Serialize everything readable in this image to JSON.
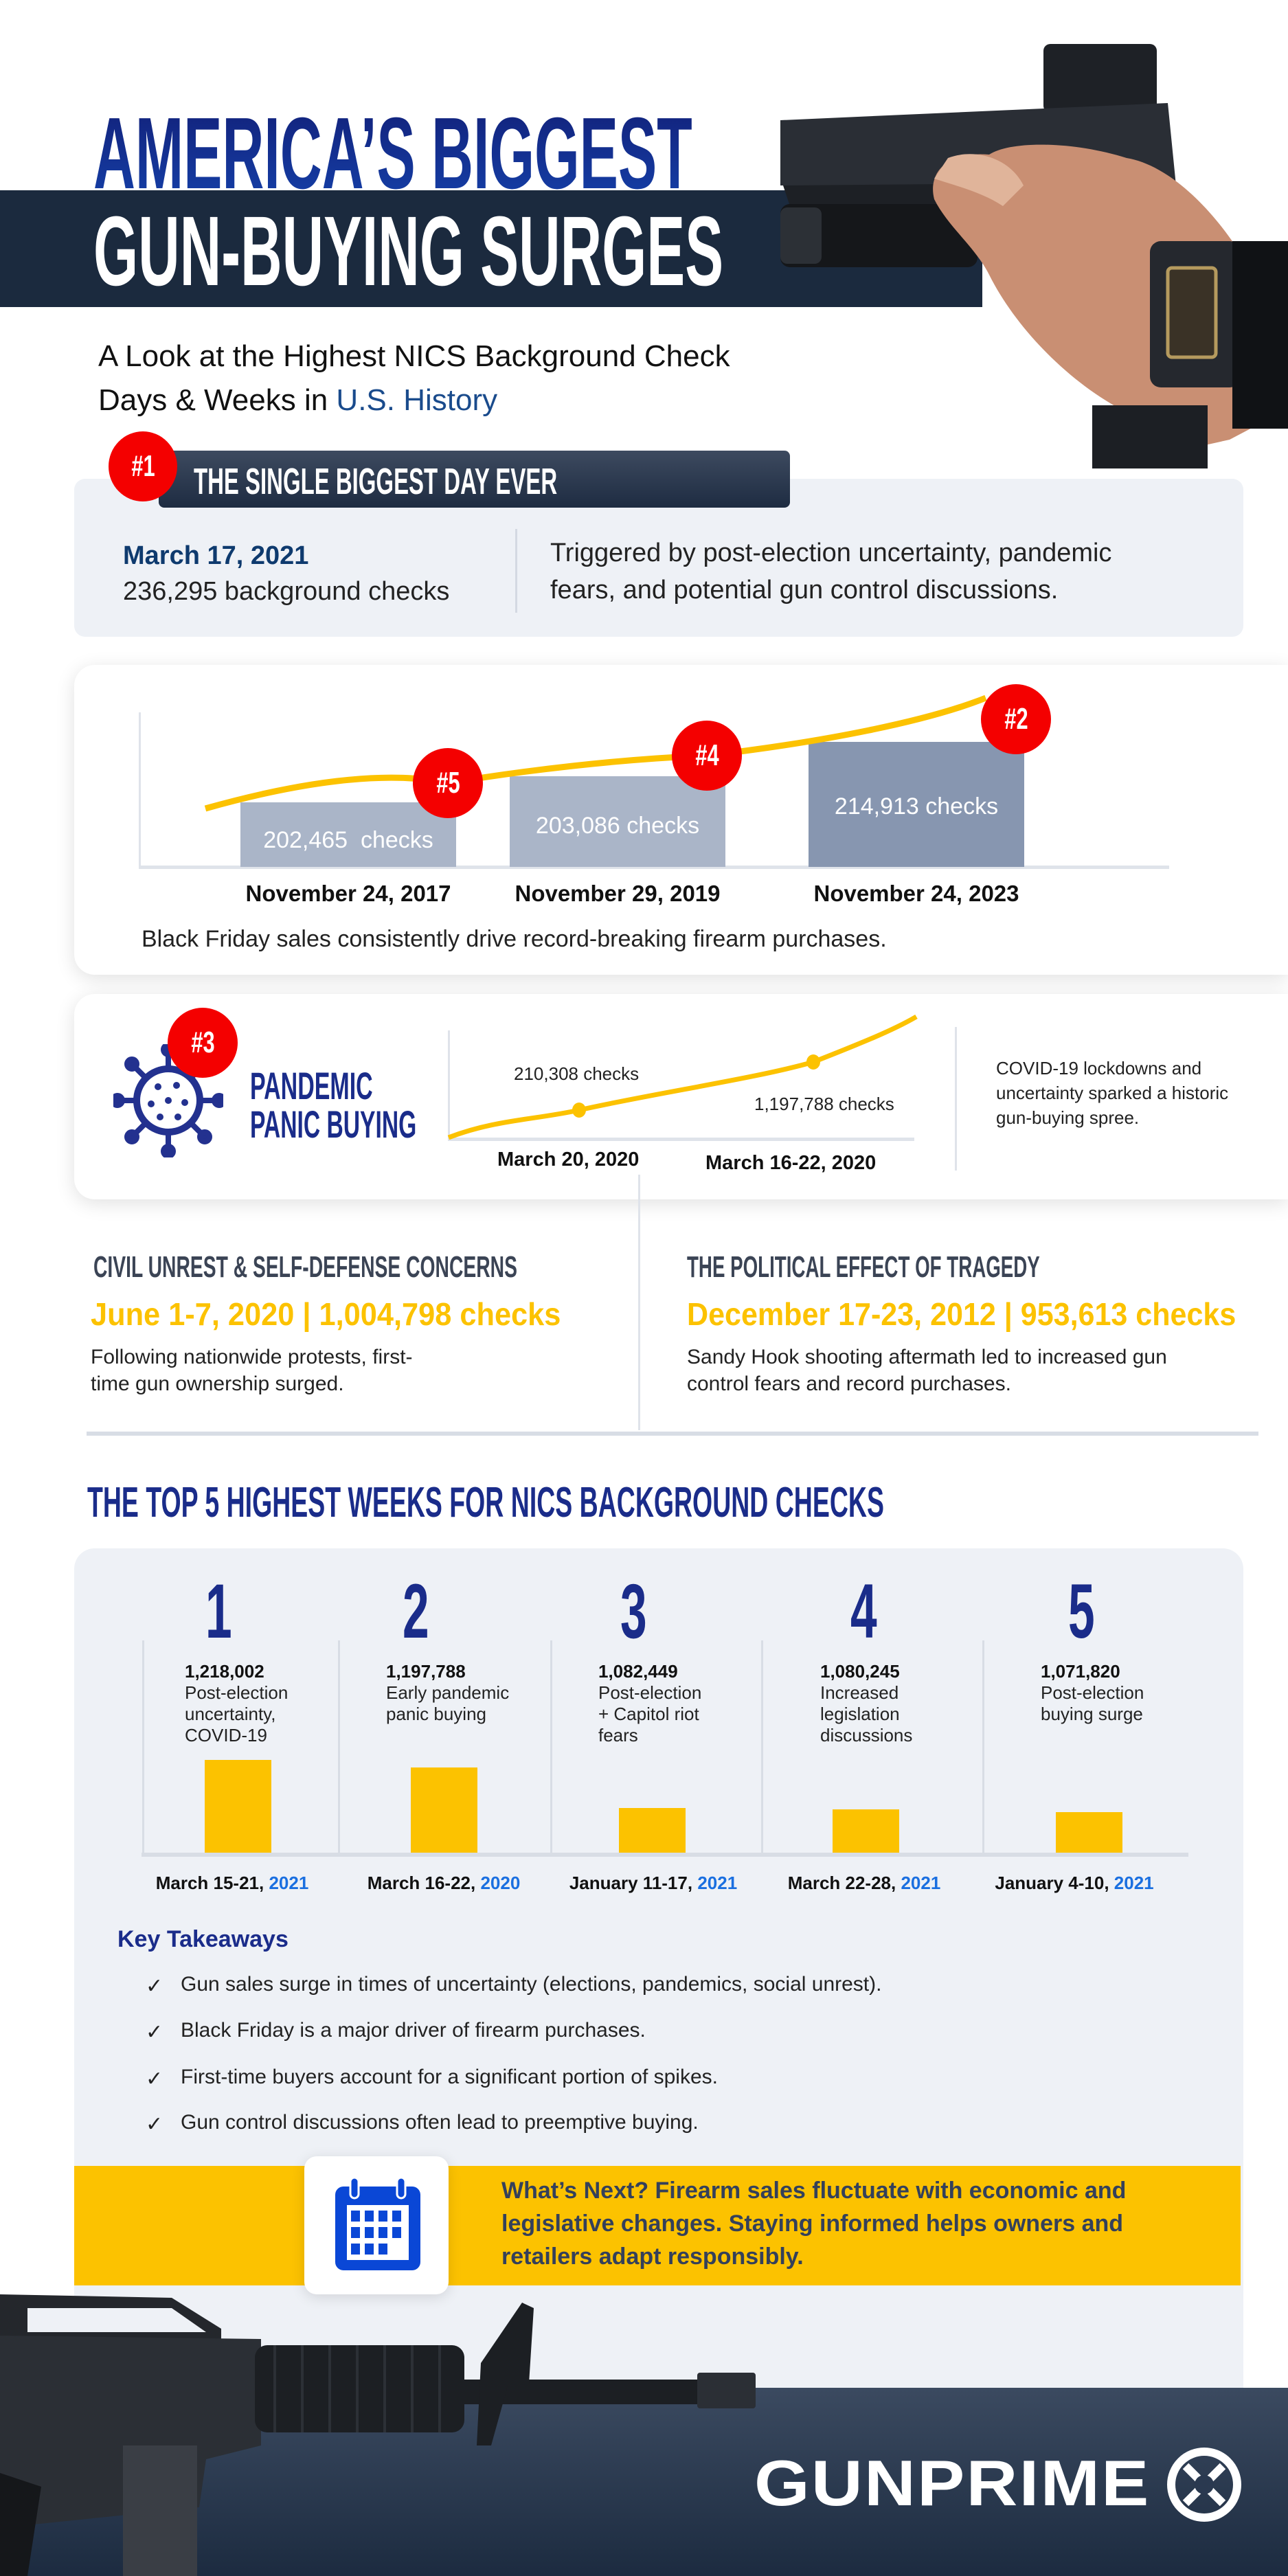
{
  "header": {
    "title_line1": "AMERICA’S BIGGEST",
    "title_line2": "GUN-BUYING SURGES",
    "subtitle_line1": "A Look at the Highest NICS Background Check",
    "subtitle_line2_prefix": "Days & Weeks in ",
    "subtitle_line2_highlight": "U.S. History"
  },
  "biggest_day": {
    "rank": "#1",
    "heading": "THE SINGLE BIGGEST DAY EVER",
    "date": "March 17, 2021",
    "checks": "236,295 background checks",
    "description_line1": "Triggered by post-election uncertainty, pandemic",
    "description_line2": "fears, and potential gun control discussions."
  },
  "black_friday": {
    "bars": [
      {
        "rank": "#5",
        "label": "202,465  checks",
        "date": "November 24, 2017",
        "value": 202465
      },
      {
        "rank": "#4",
        "label": "203,086 checks",
        "date": "November 29, 2019",
        "value": 203086
      },
      {
        "rank": "#2",
        "label": "214,913 checks",
        "date": "November 24, 2023",
        "value": 214913
      }
    ],
    "caption": "Black Friday sales consistently drive record-breaking firearm purchases."
  },
  "pandemic": {
    "rank": "#3",
    "title_line1": "PANDEMIC",
    "title_line2": "PANIC BUYING",
    "points": [
      {
        "label": "210,308 checks",
        "date": "March 20, 2020"
      },
      {
        "label": "1,197,788 checks",
        "date": "March 16-22, 2020"
      }
    ],
    "description_line1": "COVID-19 lockdowns and",
    "description_line2": "uncertainty sparked a historic",
    "description_line3": "gun-buying spree."
  },
  "civil_unrest": {
    "heading": "CIVIL UNREST & SELF-DEFENSE CONCERNS",
    "stat": "June 1-7, 2020 | 1,004,798 checks",
    "body_line1": "Following nationwide protests, first-",
    "body_line2": "time gun ownership surged."
  },
  "tragedy": {
    "heading": "THE POLITICAL EFFECT OF TRAGEDY",
    "stat": "December 17-23, 2012 | 953,613 checks",
    "body_line1": "Sandy Hook shooting aftermath led to increased gun",
    "body_line2": "control fears and record purchases."
  },
  "top_weeks": {
    "heading": "THE TOP 5 HIGHEST WEEKS FOR NICS BACKGROUND CHECKS",
    "weeks": [
      {
        "rank": "1",
        "checks": "1,218,002",
        "value": 1218002,
        "desc": [
          "Post-election",
          "uncertainty,",
          "COVID-19"
        ],
        "date": "March 15-21, ",
        "year": "2021"
      },
      {
        "rank": "2",
        "checks": "1,197,788",
        "value": 1197788,
        "desc": [
          "Early pandemic",
          "panic buying",
          ""
        ],
        "date": "March 16-22, ",
        "year": "2020"
      },
      {
        "rank": "3",
        "checks": "1,082,449",
        "value": 1082449,
        "desc": [
          "Post-election",
          "+ Capitol riot",
          "fears"
        ],
        "date": "January 11-17, ",
        "year": "2021"
      },
      {
        "rank": "4",
        "checks": "1,080,245",
        "value": 1080245,
        "desc": [
          "Increased",
          "legislation",
          "discussions"
        ],
        "date": "March 22-28, ",
        "year": "2021"
      },
      {
        "rank": "5",
        "checks": "1,071,820",
        "value": 1071820,
        "desc": [
          "Post-election",
          "buying surge",
          ""
        ],
        "date": "January 4-10, ",
        "year": "2021"
      }
    ]
  },
  "takeaways": {
    "heading": "Key Takeaways",
    "check_glyph": "✓",
    "items": [
      "Gun sales surge in times of uncertainty (elections, pandemics, social unrest).",
      "Black Friday is a major driver of firearm purchases.",
      "First-time buyers account for a significant portion of spikes.",
      "Gun control discussions often lead to preemptive buying."
    ]
  },
  "whats_next": {
    "line1": "What’s Next? Firearm sales fluctuate with economic and",
    "line2": "legislative changes. Staying informed helps owners and",
    "line3": "retailers adapt responsibly.",
    "icon": "calendar-icon"
  },
  "footer": {
    "logo_text": "GUNPRIME"
  },
  "colors": {
    "navy": "#1a2c8a",
    "dark_band": "#1b2a3e",
    "yellow": "#fcc200",
    "red": "#f40000",
    "panel": "#eef1f6",
    "blue_year": "#1a6fe0"
  }
}
